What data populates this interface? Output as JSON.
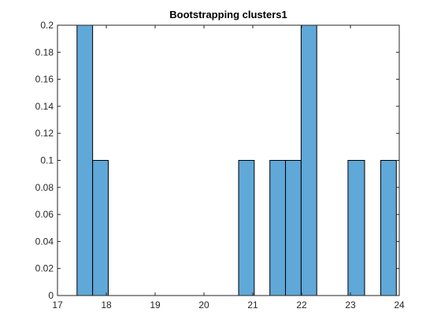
{
  "chart_data": {
    "type": "bar",
    "title": "Bootstrapping clusters1",
    "xlabel": "",
    "ylabel": "",
    "xlim": [
      17,
      24
    ],
    "ylim": [
      0,
      0.2
    ],
    "xticks": [
      17,
      18,
      19,
      20,
      21,
      22,
      23,
      24
    ],
    "yticks": [
      0,
      0.02,
      0.04,
      0.06,
      0.08,
      0.1,
      0.12,
      0.14,
      0.16,
      0.18,
      0.2
    ],
    "grid": false,
    "bins": [
      {
        "x0": 17.4,
        "x1": 17.72,
        "value": 0.2
      },
      {
        "x0": 17.72,
        "x1": 18.04,
        "value": 0.1
      },
      {
        "x0": 20.71,
        "x1": 21.03,
        "value": 0.1
      },
      {
        "x0": 21.35,
        "x1": 21.67,
        "value": 0.1
      },
      {
        "x0": 21.67,
        "x1": 21.99,
        "value": 0.1
      },
      {
        "x0": 21.99,
        "x1": 22.31,
        "value": 0.2
      },
      {
        "x0": 22.95,
        "x1": 23.29,
        "value": 0.1
      },
      {
        "x0": 23.62,
        "x1": 23.94,
        "value": 0.1
      }
    ],
    "colors": {
      "bar_fill": "#5fa8d8",
      "bar_edge": "#000000",
      "axis": "#262626"
    }
  }
}
